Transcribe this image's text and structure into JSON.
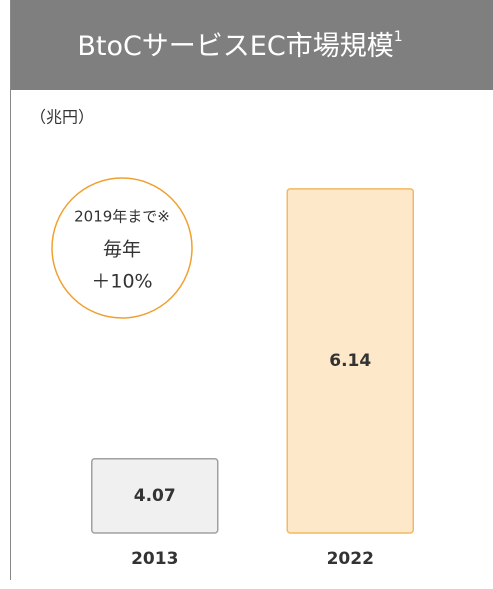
{
  "chart_data": {
    "type": "bar",
    "title": "BtoCサービスEC市場規模",
    "title_footnote_mark": "1",
    "ylabel": "（兆円）",
    "categories": [
      "2013",
      "2022"
    ],
    "values": [
      4.07,
      6.14
    ],
    "colors": [
      "#f0f0f0",
      "#fde9c9"
    ],
    "edge_colors": [
      "#a0a0a0",
      "#f2b866"
    ],
    "ylim": [
      3.5,
      6.2
    ],
    "annotation": {
      "lines": [
        "2019年まで※",
        "毎年",
        "＋10%"
      ],
      "color": "#f0a030"
    }
  }
}
